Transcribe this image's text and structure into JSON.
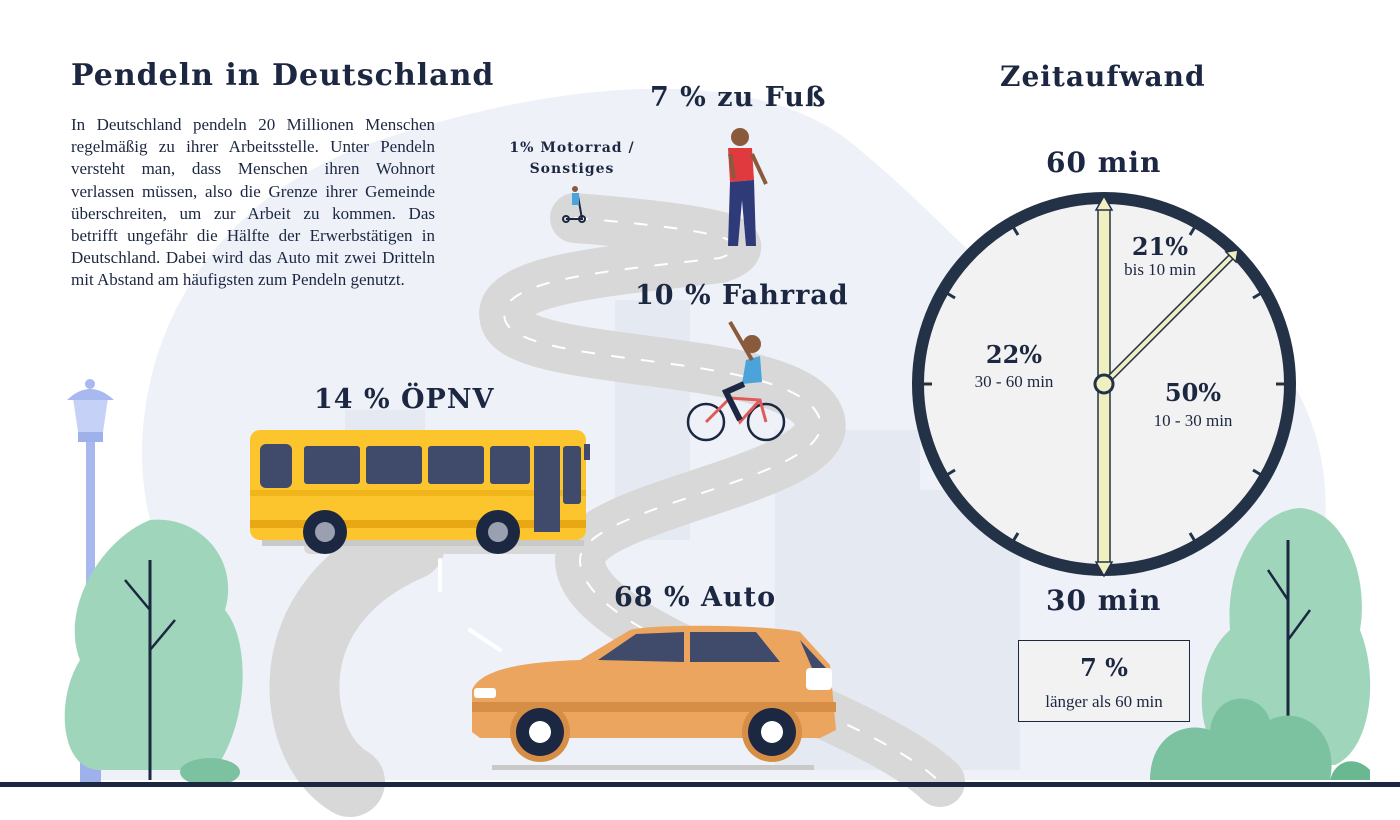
{
  "header": {
    "title": "Pendeln in Deutschland",
    "intro": "In Deutschland pendeln 20 Millionen Menschen regelmäßig zu ihrer Arbeitsstelle. Unter Pendeln versteht man, dass Menschen ihren Wohnort verlassen müssen, also die Grenze ihrer Gemeinde überschreiten, um zur Arbeit zu kommen. Das betrifft ungefähr die Hälfte der Erwerbstätigen in Deutschland. Dabei wird das Auto mit zwei Dritteln mit Abstand am häufigsten zum Pendeln genutzt."
  },
  "modes": {
    "walk": "7 % zu Fuß",
    "moto_line1": "1% Motorrad /",
    "moto_line2": "Sonstiges",
    "bike": "10 % Fahrrad",
    "bus": "14 % ÖPNV",
    "car": "68 % Auto"
  },
  "time": {
    "title": "Zeitaufwand",
    "top_label": "60 min",
    "bottom_label": "30 min",
    "segments": [
      {
        "pct": "21%",
        "label": "bis 10 min"
      },
      {
        "pct": "50%",
        "label": "10 - 30 min"
      },
      {
        "pct": "22%",
        "label": "30 - 60 min"
      }
    ],
    "extra": {
      "pct": "7 %",
      "label": "länger als 60 min"
    }
  },
  "colors": {
    "navy": "#1c2741",
    "bus_yellow": "#fcc52e",
    "car_orange": "#eba55f",
    "road": "#d8d8d8",
    "tree": "#9fd6bb",
    "lamp": "#a8b9f0",
    "hand": "#f0efc0"
  }
}
